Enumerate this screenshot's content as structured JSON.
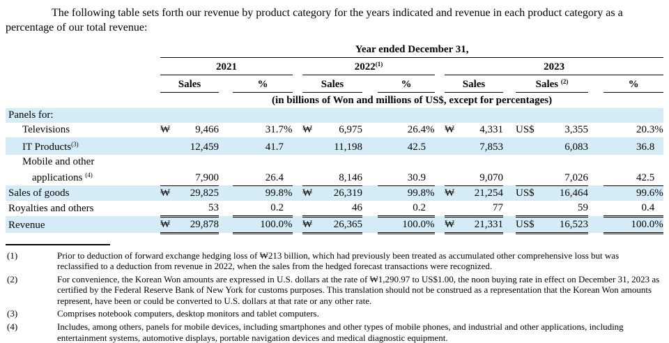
{
  "intro": "The following table sets forth our revenue by product category for the years indicated and revenue in each product category as a percentage of our total revenue:",
  "table": {
    "span_header": "Year ended December 31,",
    "unit_note": "(in billions of Won and millions of US$, except for percentages)",
    "year_groups": [
      {
        "label": "2021",
        "sup": ""
      },
      {
        "label": "2022",
        "sup": "(1)"
      },
      {
        "label": "2023",
        "sup": ""
      }
    ],
    "col_headers": [
      {
        "label": "Sales",
        "sup": ""
      },
      {
        "label": "%",
        "sup": ""
      },
      {
        "label": "Sales",
        "sup": ""
      },
      {
        "label": "%",
        "sup": ""
      },
      {
        "label": "Sales",
        "sup": ""
      },
      {
        "label": "Sales ",
        "sup": "(2)"
      },
      {
        "label": "%",
        "sup": ""
      }
    ],
    "rows": [
      {
        "name": "panels-for",
        "label_lines": [
          {
            "text": "Panels for:",
            "sup": ""
          }
        ],
        "indent": 0,
        "shaded": true,
        "rule_below": "none",
        "cells": [
          "",
          "",
          "",
          "",
          "",
          "",
          "",
          "",
          "",
          "",
          ""
        ]
      },
      {
        "name": "televisions",
        "label_lines": [
          {
            "text": "Televisions",
            "sup": ""
          }
        ],
        "indent": 1,
        "shaded": false,
        "rule_below": "none",
        "cells": [
          "₩",
          "9,466",
          "31.7%",
          "₩",
          "6,975",
          "26.4%",
          "₩",
          "4,331",
          "US$",
          "3,355",
          "20.3%"
        ]
      },
      {
        "name": "it-products",
        "label_lines": [
          {
            "text": "IT Products",
            "sup": "(3)"
          }
        ],
        "indent": 1,
        "shaded": true,
        "rule_below": "none",
        "cells": [
          "",
          "12,459",
          "41.7",
          "",
          "11,198",
          "42.5",
          "",
          "7,853",
          "",
          "6,083",
          "36.8"
        ]
      },
      {
        "name": "mobile-and-other-applications",
        "label_lines": [
          {
            "text": "Mobile and other",
            "sup": ""
          },
          {
            "text": "applications ",
            "sup": "(4)"
          }
        ],
        "indent": 1,
        "shaded": false,
        "rule_below": "single",
        "cells": [
          "",
          "7,900",
          "26.4",
          "",
          "8,146",
          "30.9",
          "",
          "9,070",
          "",
          "7,026",
          "42.5"
        ]
      },
      {
        "name": "sales-of-goods",
        "label_lines": [
          {
            "text": "Sales of goods",
            "sup": ""
          }
        ],
        "indent": 0,
        "shaded": true,
        "rule_below": "none",
        "cells": [
          "₩",
          "29,825",
          "99.8%",
          "₩",
          "26,319",
          "99.8%",
          "₩",
          "21,254",
          "US$",
          "16,464",
          "99.6%"
        ]
      },
      {
        "name": "royalties-and-others",
        "label_lines": [
          {
            "text": "Royalties and others",
            "sup": ""
          }
        ],
        "indent": 0,
        "shaded": false,
        "rule_below": "double",
        "cells": [
          "",
          "53",
          "0.2",
          "",
          "46",
          "0.2",
          "",
          "77",
          "",
          "59",
          "0.4"
        ]
      },
      {
        "name": "revenue",
        "label_lines": [
          {
            "text": "Revenue",
            "sup": ""
          }
        ],
        "indent": 0,
        "shaded": true,
        "rule_below": "double",
        "cells": [
          "₩",
          "29,878",
          "100.0%",
          "₩",
          "26,365",
          "100.0%",
          "₩",
          "21,331",
          "US$",
          "16,523",
          "100.0%"
        ]
      }
    ]
  },
  "footnotes": [
    {
      "num": "(1)",
      "text": "Prior to deduction of forward exchange hedging loss of ₩213 billion, which had previously been treated as accumulated other comprehensive loss but was reclassified to a deduction from revenue in 2022, when the sales from the hedged forecast transactions were recognized."
    },
    {
      "num": "(2)",
      "text": "For convenience, the Korean Won amounts are expressed in U.S. dollars at the rate of ₩1,290.97 to US$1.00, the noon buying rate in effect on December 31, 2023 as certified by the Federal Reserve Bank of New York for customs purposes. This translation should not be construed as a representation that the Korean Won amounts represent, have been or could be converted to U.S. dollars at that rate or any other rate."
    },
    {
      "num": "(3)",
      "text": "Comprises notebook computers, desktop monitors and tablet computers."
    },
    {
      "num": "(4)",
      "text": "Includes, among others, panels for mobile devices, including smartphones and other types of mobile phones, and industrial and other applications, including entertainment systems, automotive displays, portable navigation devices and medical diagnostic equipment."
    }
  ]
}
